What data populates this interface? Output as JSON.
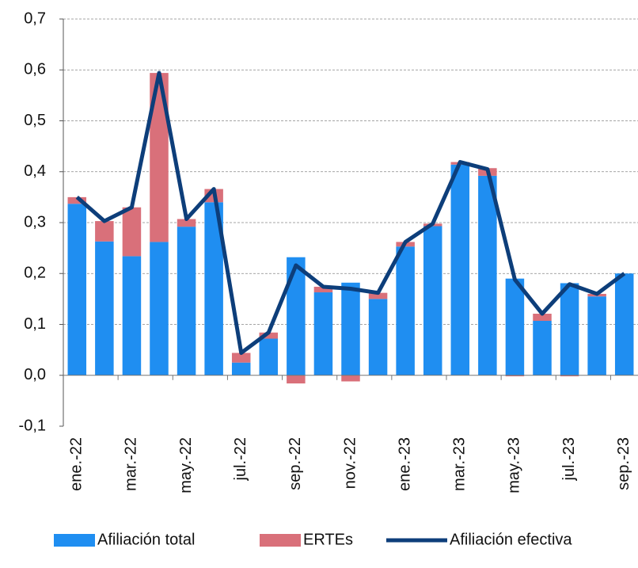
{
  "chart_data": {
    "type": "bar",
    "stacked": true,
    "categories": [
      "ene.-22",
      null,
      "mar.-22",
      null,
      "may.-22",
      null,
      "jul.-22",
      null,
      "sep.-22",
      null,
      "nov.-22",
      null,
      "ene.-23",
      null,
      "mar.-23",
      null,
      "may.-23",
      null,
      "jul.-23",
      null,
      "sep.-23"
    ],
    "series": [
      {
        "name": "Afiliación total",
        "type": "bar",
        "color": "#1f8ef1",
        "values": [
          0.337,
          0.263,
          0.234,
          0.262,
          0.292,
          0.34,
          0.025,
          0.072,
          0.232,
          0.163,
          0.182,
          0.15,
          0.253,
          0.293,
          0.414,
          0.392,
          0.19,
          0.107,
          0.181,
          0.155,
          0.2
        ]
      },
      {
        "name": "ERTEs",
        "type": "bar",
        "color": "#d9707a",
        "values": [
          0.013,
          0.04,
          0.096,
          0.332,
          0.015,
          0.026,
          0.019,
          0.012,
          -0.016,
          0.011,
          -0.012,
          0.012,
          0.009,
          0.005,
          0.005,
          0.015,
          -0.002,
          0.014,
          -0.002,
          0.005,
          0
        ]
      },
      {
        "name": "Afiliación efectiva",
        "type": "line",
        "color": "#0d3e7a",
        "values": [
          0.35,
          0.303,
          0.33,
          0.594,
          0.307,
          0.366,
          0.044,
          0.084,
          0.216,
          0.174,
          0.17,
          0.162,
          0.262,
          0.298,
          0.419,
          0.405,
          0.188,
          0.121,
          0.179,
          0.16,
          0.2
        ]
      }
    ],
    "ylim": [
      -0.1,
      0.7
    ],
    "yticks": [
      {
        "value": -0.1,
        "label": "-0,1"
      },
      {
        "value": 0,
        "label": "0,0"
      },
      {
        "value": 0.1,
        "label": "0,1"
      },
      {
        "value": 0.2,
        "label": "0,2"
      },
      {
        "value": 0.3,
        "label": "0,3"
      },
      {
        "value": 0.4,
        "label": "0,4"
      },
      {
        "value": 0.5,
        "label": "0,5"
      },
      {
        "value": 0.6,
        "label": "0,6"
      },
      {
        "value": 0.7,
        "label": "0,7"
      }
    ],
    "grid": true,
    "legend": "bottom"
  }
}
